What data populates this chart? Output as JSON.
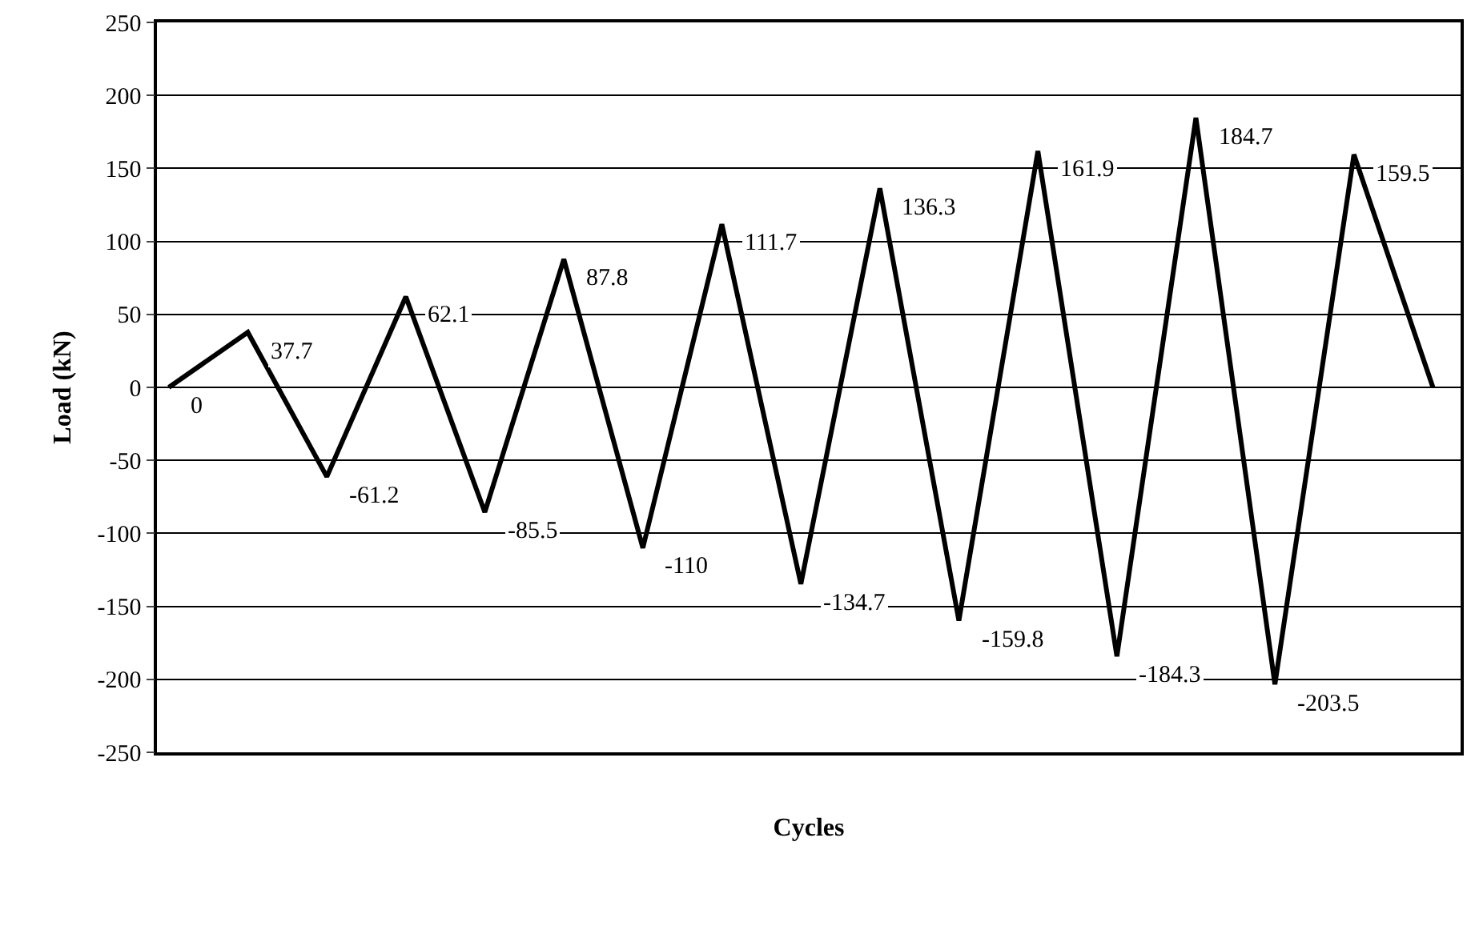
{
  "chart_data": {
    "type": "line",
    "xlabel": "Cycles",
    "ylabel": "Load (kN)",
    "categories": [
      null,
      null,
      null,
      null,
      null,
      null,
      null,
      null,
      null,
      null,
      null,
      null,
      null,
      null,
      null,
      null,
      null
    ],
    "series": [
      {
        "color": "#000000",
        "values": [
          0,
          37.7,
          -61.2,
          62.1,
          -85.5,
          87.8,
          -110,
          111.7,
          -134.7,
          136.3,
          -159.8,
          161.9,
          -184.3,
          184.7,
          -203.5,
          159.5,
          0
        ],
        "value_labels": [
          "0",
          "37.7",
          "-61.2",
          "62.1",
          "-85.5",
          "87.8",
          "-110",
          "111.7",
          "-134.7",
          "136.3",
          "-159.8",
          "161.9",
          "-184.3",
          "184.7",
          "-203.5",
          "159.5",
          null
        ]
      }
    ],
    "ylim": [
      -250,
      250
    ],
    "yticks": [
      -250,
      -200,
      -150,
      -100,
      -50,
      0,
      50,
      100,
      150,
      200,
      250
    ],
    "grid": "y",
    "marker": "none",
    "line_style": "solid",
    "tick_labels": "y"
  }
}
